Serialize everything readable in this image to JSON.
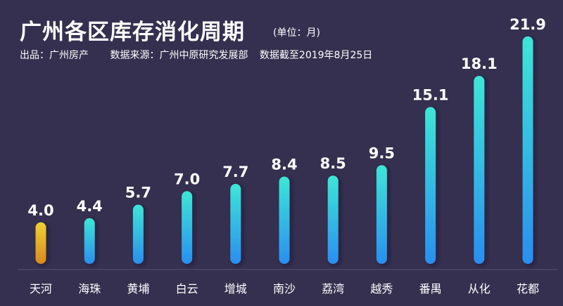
{
  "title": "广州各区库存消化周期",
  "unit": "(单位：月)",
  "credits": {
    "producer": "出品：广州房产",
    "source": "数据来源：广州中原研究发展部",
    "date": "数据截至2019年8月25日"
  },
  "chart_data": {
    "type": "bar",
    "title": "广州各区库存消化周期",
    "unit": "月",
    "categories": [
      "天河",
      "海珠",
      "黄埔",
      "白云",
      "增城",
      "南沙",
      "荔湾",
      "越秀",
      "番禺",
      "从化",
      "花都"
    ],
    "values": [
      4.0,
      4.4,
      5.7,
      7.0,
      7.7,
      8.4,
      8.5,
      9.5,
      15.1,
      18.1,
      21.9
    ],
    "labels": [
      "4.0",
      "4.4",
      "5.7",
      "7.0",
      "7.7",
      "8.4",
      "8.5",
      "9.5",
      "15.1",
      "18.1",
      "21.9"
    ],
    "ylim": [
      0,
      22
    ],
    "grid": false,
    "colors": {
      "highlight_top": "#f0d033",
      "highlight_bottom": "#d98a1e",
      "bar_top": "#3de6d6",
      "bar_bottom": "#2a8ef0",
      "background": "#35304f"
    }
  }
}
